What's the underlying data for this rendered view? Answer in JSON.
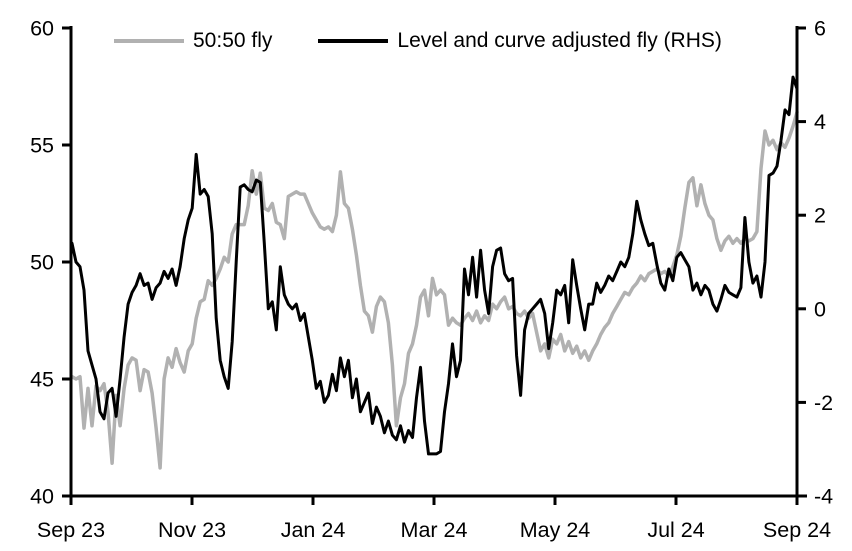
{
  "figure": {
    "background": "#ffffff"
  },
  "legend": {
    "items": [
      {
        "label": "50:50 fly",
        "color": "#b1b1b1"
      },
      {
        "label": "Level and curve adjusted fly (RHS)",
        "color": "#000000"
      }
    ]
  },
  "chart_data": {
    "type": "line",
    "title": "",
    "grid": false,
    "legend_position": "top",
    "x_axis": {
      "start": "Sep 2023",
      "end": "Sep 2024",
      "tick_labels": [
        "Sep 23",
        "Nov 23",
        "Jan 24",
        "Mar 24",
        "May 24",
        "Jul 24",
        "Sep 24"
      ]
    },
    "left_axis": {
      "range": [
        40,
        60
      ],
      "ticks": [
        60,
        55,
        50,
        45,
        40
      ]
    },
    "right_axis": {
      "range": [
        -4,
        6
      ],
      "ticks": [
        6,
        4,
        2,
        0,
        -2,
        -4
      ]
    },
    "series": [
      {
        "name": "50:50 fly",
        "axis": "left",
        "color": "#b1b1b1",
        "line_width": 3.5,
        "values": [
          45.1,
          45.0,
          45.1,
          42.9,
          44.6,
          43.0,
          44.7,
          44.5,
          44.8,
          43.6,
          41.4,
          44.3,
          43.0,
          44.6,
          45.6,
          45.9,
          45.8,
          44.5,
          45.4,
          45.3,
          44.4,
          42.9,
          41.2,
          45.0,
          45.9,
          45.5,
          46.3,
          45.7,
          45.3,
          46.2,
          46.5,
          47.6,
          48.3,
          48.4,
          49.2,
          49.0,
          49.3,
          49.7,
          50.2,
          50.0,
          51.2,
          51.6,
          51.6,
          51.6,
          52.4,
          53.9,
          52.9,
          53.8,
          52.3,
          52.2,
          52.5,
          51.7,
          51.6,
          51.0,
          52.8,
          52.9,
          53.0,
          52.9,
          52.9,
          52.5,
          52.1,
          51.8,
          51.5,
          51.4,
          51.5,
          51.3,
          52.0,
          53.85,
          52.5,
          52.3,
          51.4,
          50.3,
          49.0,
          47.9,
          47.7,
          47.0,
          48.1,
          48.5,
          48.3,
          47.4,
          45.6,
          43.0,
          44.2,
          44.8,
          46.1,
          46.5,
          47.3,
          48.5,
          48.8,
          47.7,
          49.3,
          48.6,
          48.8,
          48.6,
          47.3,
          47.6,
          47.4,
          47.3,
          47.6,
          47.8,
          47.5,
          47.9,
          47.4,
          47.7,
          47.5,
          48.2,
          48.0,
          48.3,
          48.5,
          48.0,
          48.1,
          47.8,
          47.7,
          47.9,
          47.6,
          47.8,
          47.0,
          46.2,
          46.5,
          45.9,
          46.7,
          46.5,
          46.9,
          46.2,
          46.6,
          46.1,
          46.4,
          45.9,
          46.2,
          45.8,
          46.2,
          46.5,
          46.9,
          47.2,
          47.4,
          47.8,
          48.1,
          48.4,
          48.7,
          48.6,
          48.9,
          49.1,
          49.4,
          49.2,
          49.5,
          49.6,
          49.7,
          49.5,
          49.6,
          49.4,
          49.8,
          50.3,
          51.1,
          52.3,
          53.4,
          53.6,
          52.4,
          53.3,
          52.5,
          52.0,
          51.8,
          51.0,
          50.5,
          50.9,
          51.1,
          50.8,
          51.0,
          50.8,
          51.0,
          50.9,
          51.0,
          51.3,
          54.0,
          55.6,
          55.0,
          55.2,
          54.8,
          55.1,
          54.9,
          55.3,
          55.8,
          56.4
        ]
      },
      {
        "name": "Level and curve adjusted fly (RHS)",
        "axis": "right",
        "color": "#000000",
        "line_width": 3,
        "values": [
          1.4,
          1.0,
          0.9,
          0.4,
          -0.9,
          -1.2,
          -1.5,
          -2.2,
          -2.35,
          -1.8,
          -1.7,
          -2.3,
          -1.5,
          -0.6,
          0.1,
          0.35,
          0.5,
          0.75,
          0.5,
          0.55,
          0.2,
          0.45,
          0.55,
          0.8,
          0.65,
          0.85,
          0.5,
          0.9,
          1.5,
          1.9,
          2.15,
          3.3,
          2.45,
          2.55,
          2.4,
          1.6,
          -0.2,
          -1.1,
          -1.45,
          -1.7,
          -0.7,
          1.0,
          2.6,
          2.65,
          2.55,
          2.5,
          2.75,
          2.7,
          1.4,
          0.0,
          0.15,
          -0.45,
          0.9,
          0.3,
          0.1,
          0.0,
          0.1,
          -0.25,
          -0.1,
          -0.6,
          -1.1,
          -1.7,
          -1.55,
          -2.0,
          -1.85,
          -1.4,
          -1.75,
          -1.05,
          -1.45,
          -1.1,
          -1.9,
          -1.5,
          -2.2,
          -2.0,
          -1.8,
          -2.45,
          -2.1,
          -2.3,
          -2.65,
          -2.4,
          -2.7,
          -2.8,
          -2.5,
          -2.85,
          -2.6,
          -2.75,
          -1.9,
          -1.25,
          -2.4,
          -3.1,
          -3.1,
          -3.1,
          -3.05,
          -2.2,
          -1.6,
          -0.75,
          -1.45,
          -1.1,
          0.85,
          0.3,
          1.1,
          0.25,
          1.25,
          0.4,
          -0.1,
          0.9,
          1.25,
          1.3,
          0.75,
          0.6,
          0.65,
          -1.0,
          -1.85,
          -0.45,
          -0.1,
          0.0,
          0.1,
          0.2,
          -0.1,
          -0.85,
          -0.3,
          0.4,
          0.3,
          0.5,
          -0.3,
          1.05,
          0.5,
          0.0,
          -0.45,
          0.1,
          0.1,
          0.55,
          0.35,
          0.5,
          0.7,
          0.6,
          0.8,
          1.0,
          0.9,
          1.1,
          1.6,
          2.3,
          1.9,
          1.6,
          1.35,
          1.4,
          0.95,
          0.55,
          0.4,
          0.85,
          0.6,
          1.1,
          1.2,
          1.05,
          0.9,
          0.4,
          0.55,
          0.3,
          0.5,
          0.4,
          0.1,
          -0.05,
          0.2,
          0.5,
          0.35,
          0.3,
          0.25,
          0.45,
          1.95,
          1.0,
          0.55,
          0.7,
          0.25,
          1.0,
          2.85,
          2.9,
          3.05,
          3.6,
          4.25,
          4.15,
          4.95,
          4.7
        ]
      }
    ]
  }
}
